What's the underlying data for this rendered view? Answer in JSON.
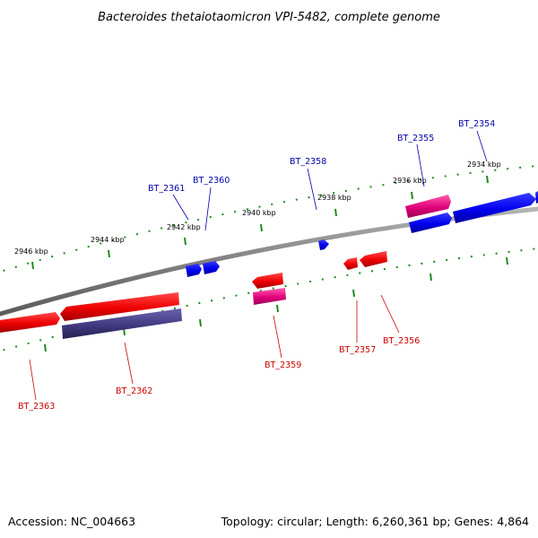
{
  "title": "Bacteroides thetaiotaomicron VPI-5482, complete genome",
  "footer": {
    "accession": "Accession: NC_004663",
    "summary": "Topology: circular; Length: 6,260,361 bp; Genes: 4,864"
  },
  "scale": {
    "outer_ticks": [
      "2946 kbp",
      "2944 kbp",
      "2942 kbp",
      "2940 kbp",
      "2938 kbp",
      "2936 kbp",
      "2934 kbp"
    ]
  },
  "genes_top": [
    {
      "name": "BT_2361",
      "color": "#0000ee"
    },
    {
      "name": "BT_2360",
      "color": "#0000ee"
    },
    {
      "name": "BT_2358",
      "color": "#0000ee"
    },
    {
      "name": "BT_2355",
      "color": "#e0007a"
    },
    {
      "name": "BT_2354",
      "color": "#0000ee"
    }
  ],
  "genes_bottom": [
    {
      "name": "BT_2363",
      "color": "#ee0000"
    },
    {
      "name": "BT_2362",
      "color": "#ee0000"
    },
    {
      "name": "BT_2359",
      "color": "#ee0000"
    },
    {
      "name": "BT_2357",
      "color": "#ee0000"
    },
    {
      "name": "BT_2356",
      "color": "#ee0000"
    }
  ],
  "colors": {
    "backbone": "#808080",
    "tick": "#1f8a1f",
    "forward_gene": "#0000ee",
    "reverse_gene": "#ee0000",
    "rna_gene": "#e0007a",
    "pseudo_gene": "#403a80"
  }
}
